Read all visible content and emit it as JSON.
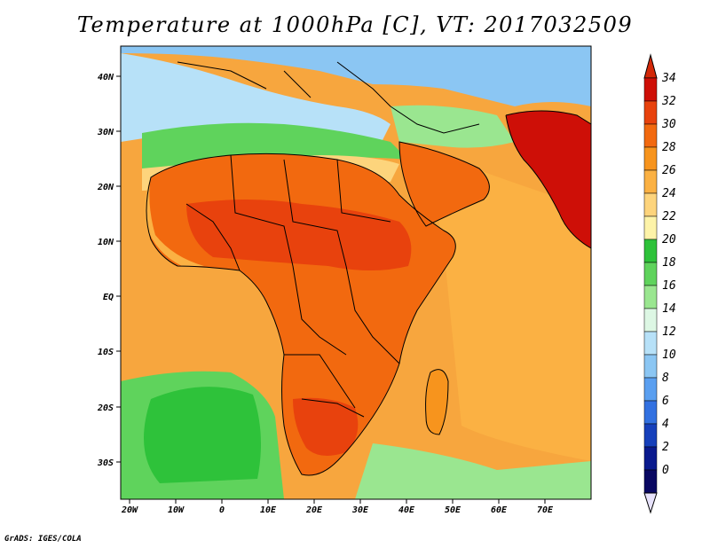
{
  "title": "Temperature at 1000hPa [C], VT: 2017032509",
  "credit": "GrADS: IGES/COLA",
  "lat_labels": [
    "40N",
    "30N",
    "20N",
    "10N",
    "EQ",
    "10S",
    "20S",
    "30S"
  ],
  "lon_labels": [
    "20W",
    "10W",
    "0",
    "10E",
    "20E",
    "30E",
    "40E",
    "50E",
    "60E",
    "70E"
  ],
  "colorbar": {
    "labels": [
      "34",
      "32",
      "30",
      "28",
      "26",
      "24",
      "22",
      "20",
      "18",
      "16",
      "14",
      "12",
      "10",
      "8",
      "6",
      "4",
      "2",
      "0"
    ],
    "colors": [
      "#ce0f07",
      "#e8420d",
      "#f2690f",
      "#f7941d",
      "#fbb143",
      "#fdd47c",
      "#fdf3a8",
      "#2ec23a",
      "#5fd35c",
      "#9ae690",
      "#ddf7e4",
      "#b7e1f8",
      "#8bc6f3",
      "#5a9ff0",
      "#3271e1",
      "#1640bb",
      "#0a1a8e",
      "#090862"
    ],
    "top_color": "#d32808",
    "bottom_color": "#e7e2fb"
  },
  "map": {
    "ocean_warm": "#f7a63e",
    "ocean_cool": "#ffd27a",
    "land_hot": "#e8420d",
    "land_warm": "#f2690f",
    "north_cool": "#8bc6f3",
    "north_green": "#5fd35c",
    "south_green": "#2ec23a",
    "border_color": "#000000"
  }
}
